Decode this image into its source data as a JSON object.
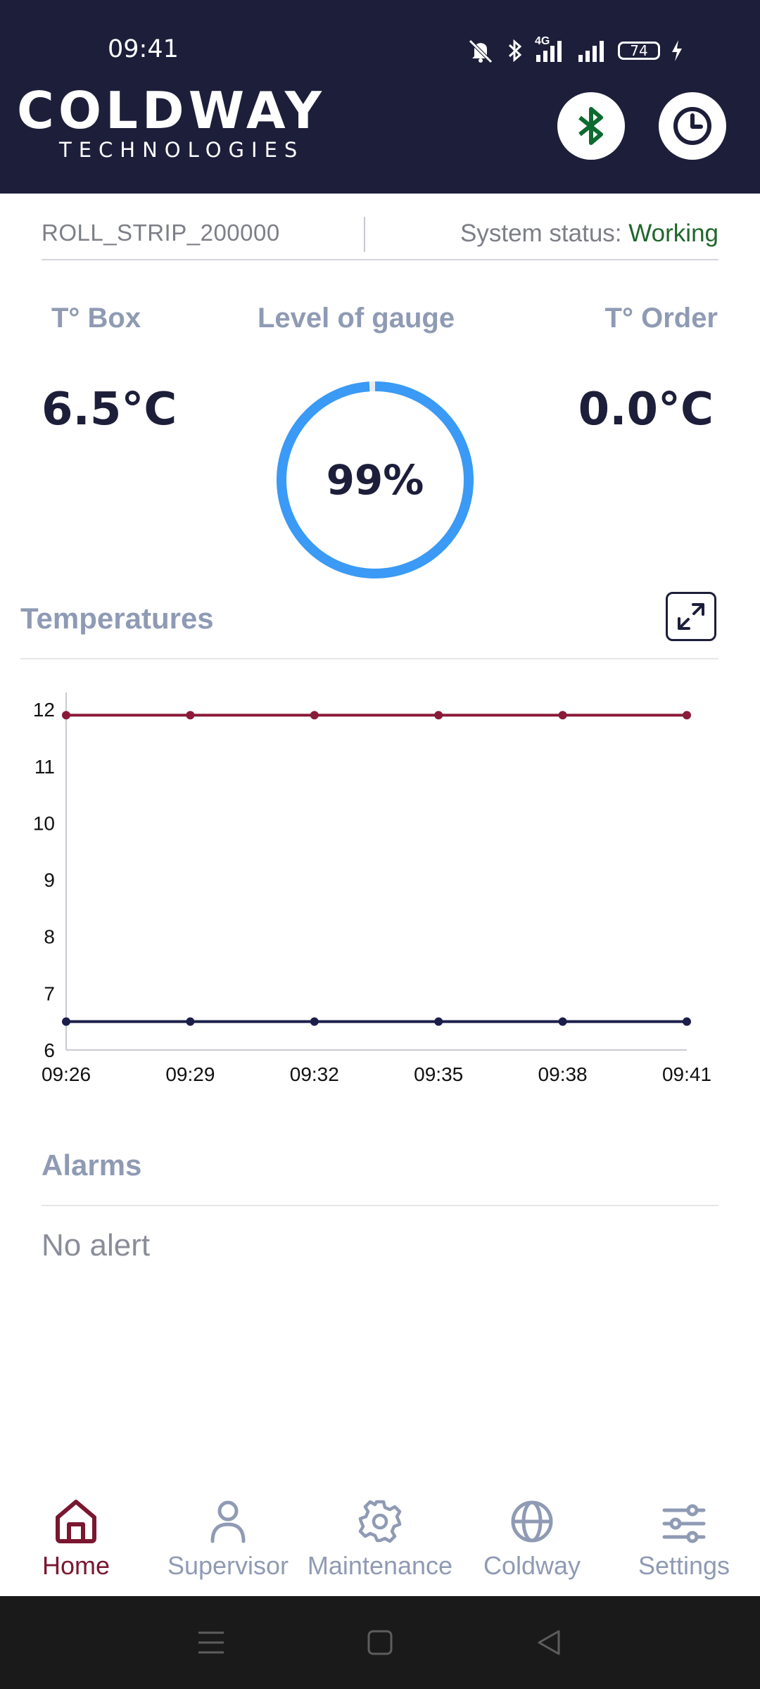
{
  "status_bar": {
    "time": "09:41",
    "network": "4G",
    "battery": "74",
    "icons": [
      "mute-icon",
      "bluetooth-icon",
      "signal-4g-icon",
      "signal-icon",
      "battery-icon",
      "charging-icon"
    ]
  },
  "header": {
    "logo_main": "COLDWAY",
    "logo_sub": "TECHNOLOGIES",
    "buttons": [
      "bluetooth-icon",
      "clock-icon"
    ],
    "bluetooth_color": "#0d6b2f"
  },
  "device": {
    "name": "ROLL_STRIP_200000",
    "status_label": "System status: ",
    "status_value": "Working",
    "status_color": "#20662b"
  },
  "metrics": {
    "box_label": "T° Box",
    "box_value": "6.5°C",
    "gauge_label": "Level of gauge",
    "gauge_value": "99%",
    "gauge_fraction": 0.99,
    "order_label": "T° Order",
    "order_value": "0.0°C"
  },
  "temperatures": {
    "title": "Temperatures",
    "expand_icon": "expand-icon"
  },
  "chart_data": {
    "type": "line",
    "x": [
      "09:26",
      "09:29",
      "09:32",
      "09:35",
      "09:38",
      "09:41"
    ],
    "ylim": [
      6,
      12.3
    ],
    "yticks": [
      6,
      7,
      8,
      9,
      10,
      11,
      12
    ],
    "grid": false,
    "series": [
      {
        "color": "#8b1a3a",
        "values": [
          11.9,
          11.9,
          11.9,
          11.9,
          11.9,
          11.9
        ]
      },
      {
        "color": "#1c1e4a",
        "values": [
          6.5,
          6.5,
          6.5,
          6.5,
          6.5,
          6.5
        ]
      }
    ]
  },
  "alarms": {
    "title": "Alarms",
    "message": "No alert"
  },
  "nav": {
    "items": [
      {
        "label": "Home",
        "icon": "home-icon",
        "active": true
      },
      {
        "label": "Supervisor",
        "icon": "user-icon",
        "active": false
      },
      {
        "label": "Maintenance",
        "icon": "gear-icon",
        "active": false
      },
      {
        "label": "Coldway",
        "icon": "globe-icon",
        "active": false
      },
      {
        "label": "Settings",
        "icon": "sliders-icon",
        "active": false
      }
    ],
    "active_color": "#7b1730",
    "inactive_color": "#8f9ab4"
  },
  "system_nav": [
    "menu-icon",
    "home-square-icon",
    "back-icon"
  ]
}
